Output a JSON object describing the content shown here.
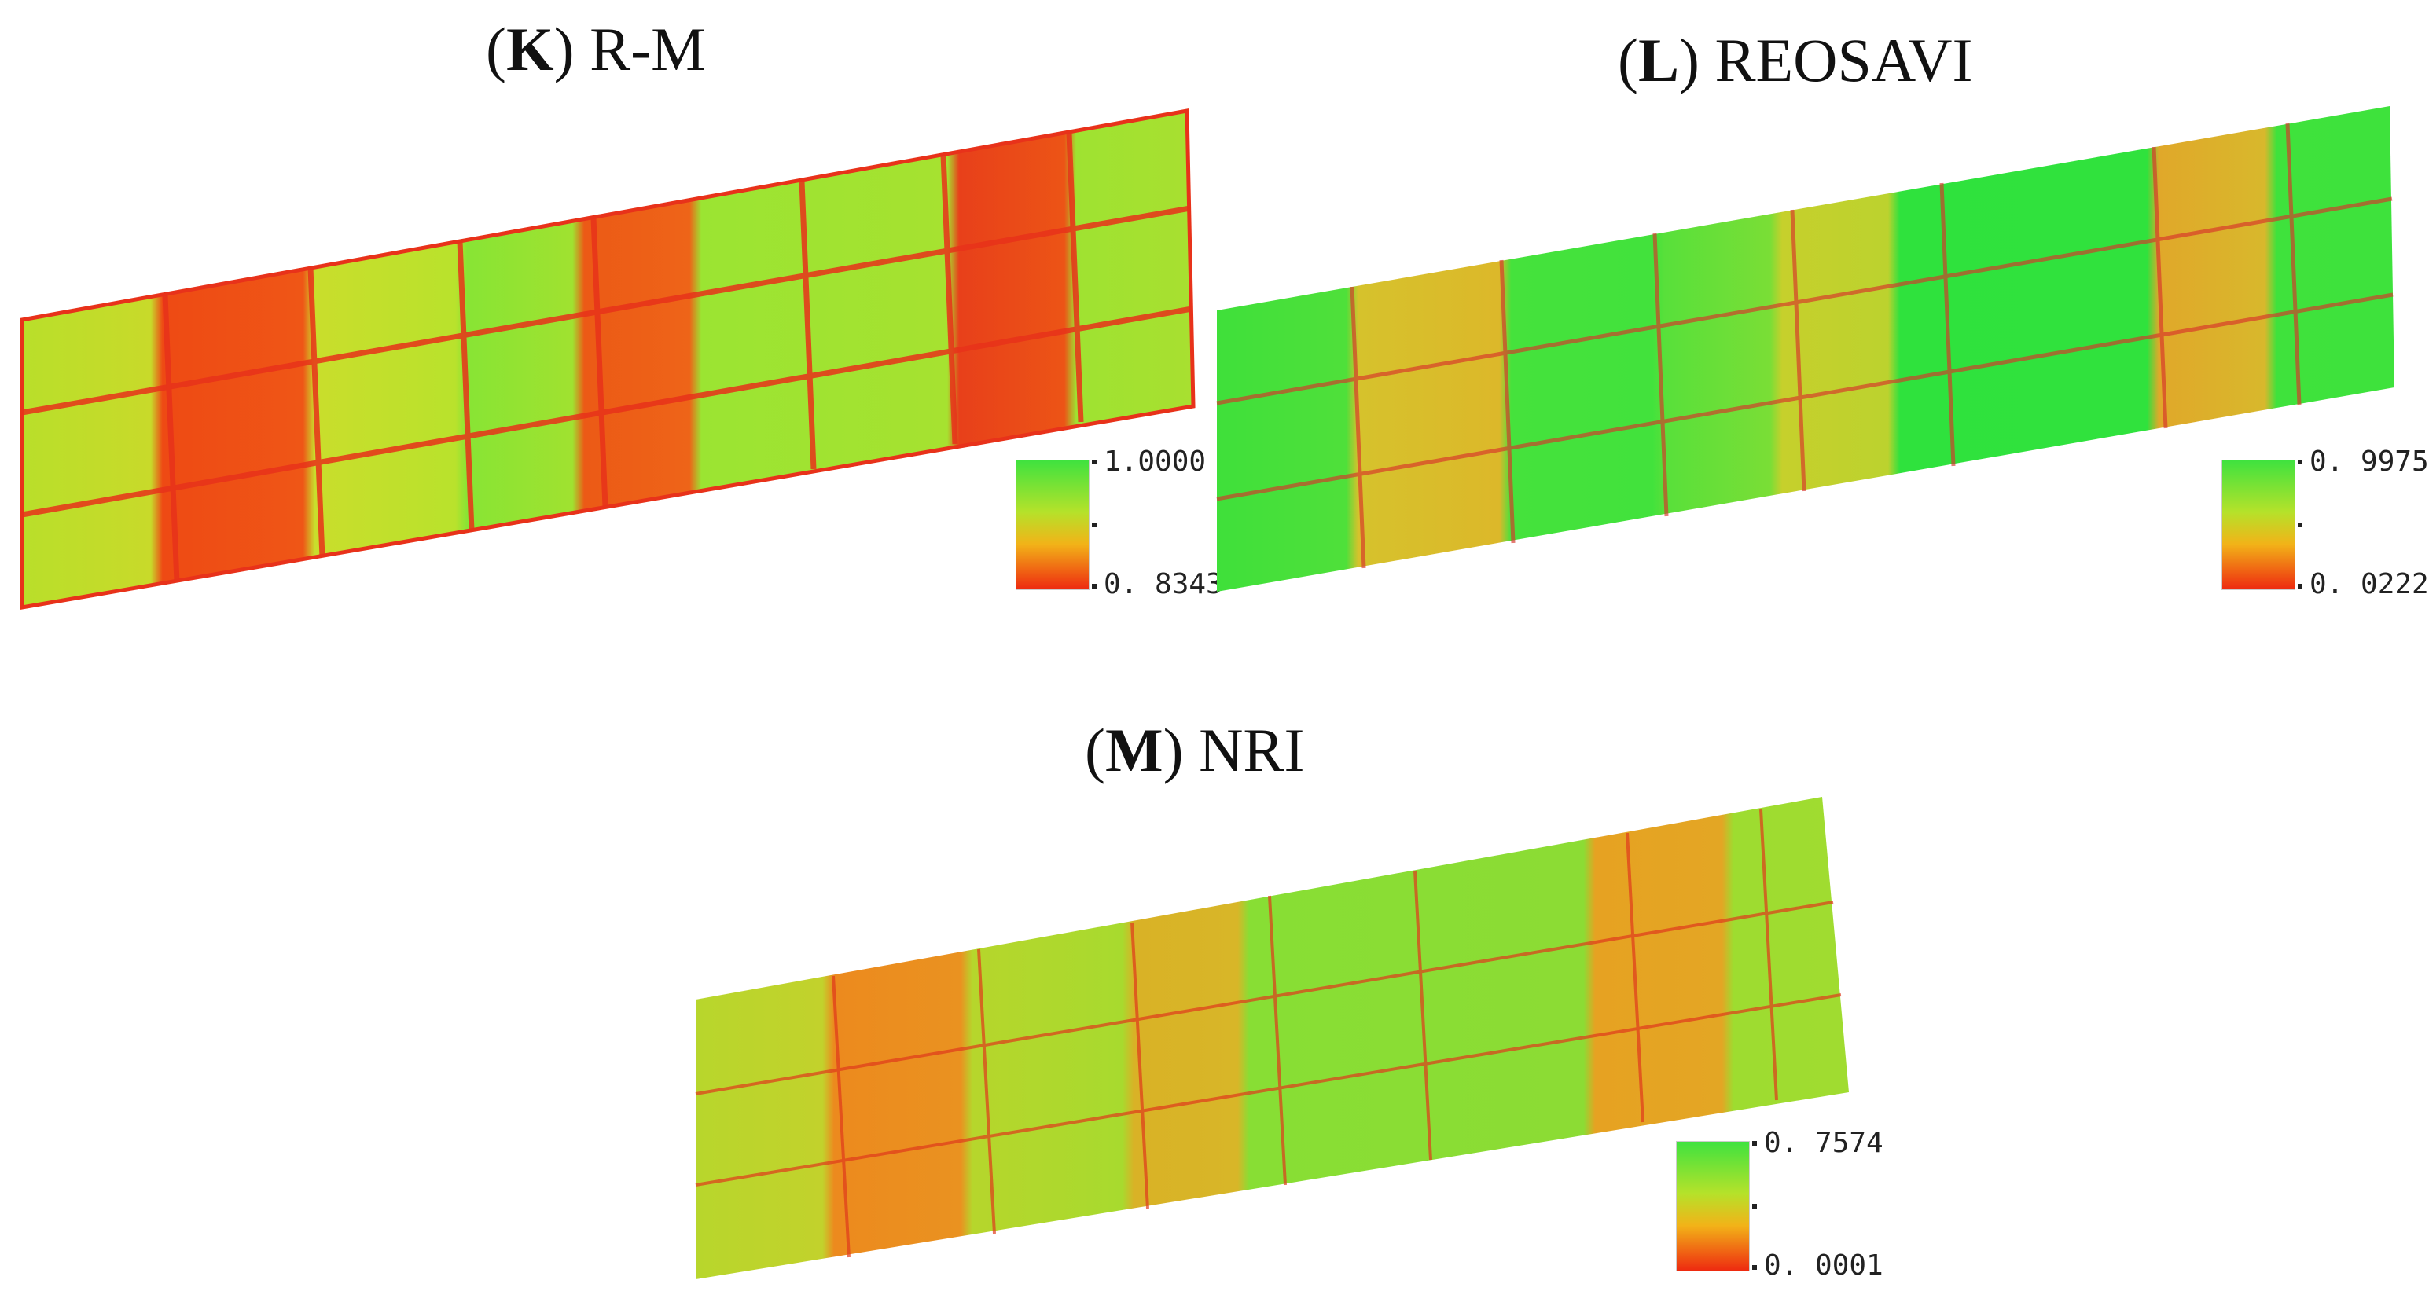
{
  "panels": [
    {
      "letter": "K",
      "name": "R-M",
      "legend": {
        "max": "1.0000",
        "min": "0. 8343"
      },
      "colors": {
        "low": "#ee2a10",
        "mid": "#f2b318",
        "high": "#3fe23f"
      }
    },
    {
      "letter": "L",
      "name": "REOSAVI",
      "legend": {
        "max": "0. 9975",
        "min": "0. 0222"
      },
      "colors": {
        "low": "#ee2a10",
        "mid": "#f2b318",
        "high": "#3fe23f"
      }
    },
    {
      "letter": "M",
      "name": "NRI",
      "legend": {
        "max": "0. 7574",
        "min": "0. 0001"
      },
      "colors": {
        "low": "#ee2a10",
        "mid": "#f2b318",
        "high": "#3fe23f"
      }
    }
  ]
}
